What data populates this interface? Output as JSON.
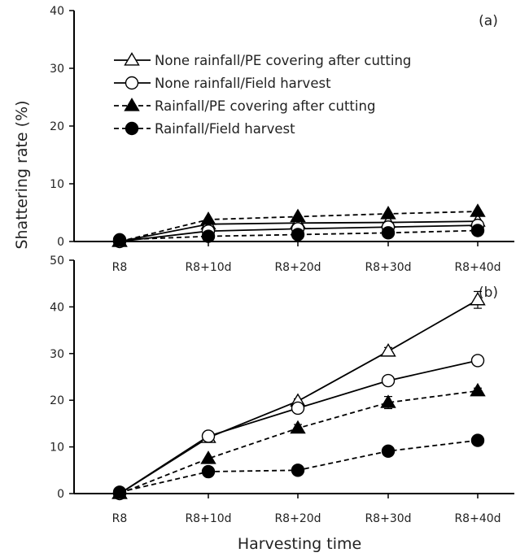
{
  "figure": {
    "ylabel": "Shattering rate (%)",
    "xlabel": "Harvesting time"
  },
  "legend": [
    {
      "label": "None rainfall/PE covering after cutting",
      "marker": "triangle",
      "fill": "#ffffff",
      "dash": false
    },
    {
      "label": "None rainfall/Field harvest",
      "marker": "circle",
      "fill": "#ffffff",
      "dash": false
    },
    {
      "label": "Rainfall/PE covering after cutting",
      "marker": "triangle",
      "fill": "#000000",
      "dash": true
    },
    {
      "label": "Rainfall/Field harvest",
      "marker": "circle",
      "fill": "#000000",
      "dash": true
    }
  ],
  "chart_data": [
    {
      "panel": "(a)",
      "type": "line",
      "categories": [
        "R8",
        "R8+10d",
        "R8+20d",
        "R8+30d",
        "R8+40d"
      ],
      "ylim": [
        0,
        40
      ],
      "yticks": [
        "0",
        "10",
        "20",
        "30",
        "40"
      ],
      "series": [
        {
          "name": "None rainfall/PE covering after cutting",
          "values": [
            0,
            3.0,
            3.2,
            3.3,
            3.5
          ]
        },
        {
          "name": "None rainfall/Field harvest",
          "values": [
            0,
            1.8,
            2.2,
            2.5,
            2.8
          ]
        },
        {
          "name": "Rainfall/PE covering after cutting",
          "values": [
            0,
            3.8,
            4.3,
            4.8,
            5.2
          ]
        },
        {
          "name": "Rainfall/Field harvest",
          "values": [
            0.3,
            0.9,
            1.2,
            1.5,
            1.9
          ]
        }
      ]
    },
    {
      "panel": "(b)",
      "type": "line",
      "categories": [
        "R8",
        "R8+10d",
        "R8+20d",
        "R8+30d",
        "R8+40d"
      ],
      "ylim": [
        0,
        50
      ],
      "yticks": [
        "0",
        "10",
        "20",
        "30",
        "40",
        "50"
      ],
      "series": [
        {
          "name": "None rainfall/PE covering after cutting",
          "values": [
            0,
            12.0,
            19.8,
            30.5,
            41.5
          ],
          "errors": [
            0,
            0,
            0.5,
            0.8,
            1.8
          ]
        },
        {
          "name": "None rainfall/Field harvest",
          "values": [
            0,
            12.3,
            18.3,
            24.2,
            28.5
          ],
          "errors": [
            0,
            0,
            0.3,
            0.3,
            0.5
          ]
        },
        {
          "name": "Rainfall/PE covering after cutting",
          "values": [
            0,
            7.5,
            14.0,
            19.5,
            22.0
          ],
          "errors": [
            0,
            0,
            0.8,
            1.3,
            0.6
          ]
        },
        {
          "name": "Rainfall/Field harvest",
          "values": [
            0.3,
            4.7,
            5.0,
            9.1,
            11.4
          ],
          "errors": [
            0,
            0,
            0.3,
            0.4,
            0.4
          ]
        }
      ]
    }
  ]
}
